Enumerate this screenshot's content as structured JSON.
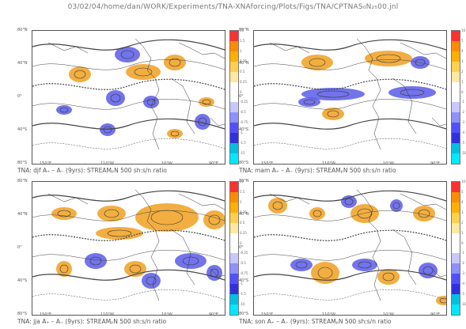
{
  "header": {
    "title": "03/02/04/home/dan/WORK/Experiments/TNA-XNAforcing/Plots/Figs/TNA/CPTNAS₀N₂₅00.jnl"
  },
  "lat_labels": [
    "80°N",
    "40°N",
    "0°",
    "40°S",
    "80°S"
  ],
  "lon_labels": [
    "150°E",
    "110°W",
    "10°W",
    "90°E"
  ],
  "panels": [
    {
      "id": "djf",
      "caption": "TNA: djf A₊ – A₋ (9yrs): STREAMₚN 500 sh:s/n ratio",
      "cbar_labels": [
        "15",
        "1.5",
        "1",
        "0.75",
        "0.5",
        "0.25",
        "0",
        "-0.25",
        "-0.5",
        "-0.75",
        "-1",
        "-1.5",
        "-15"
      ]
    },
    {
      "id": "mam",
      "caption": "TNA: mam A₊ – A₋ (9yrs): STREAMₚN 500 sh:s/n ratio",
      "cbar_labels": [
        "10",
        "5",
        "4",
        "3",
        "2",
        "1",
        "0",
        "-1",
        "-2",
        "-3",
        "-4",
        "-5",
        "-10"
      ]
    },
    {
      "id": "jja",
      "caption": "TNA: jja A₊ – A₋ (9yrs): STREAMₚN 500 sh:s/n ratio",
      "cbar_labels": [
        "10",
        "1.5",
        "1",
        "0.75",
        "0.5",
        "0.25",
        "0",
        "-0.25",
        "-0.5",
        "-0.75",
        "-1",
        "-1.5",
        "-10"
      ]
    },
    {
      "id": "son",
      "caption": "TNA: son A₊ – A₋ (9yrs): STREAMₚN 500 sh:s/n ratio",
      "cbar_labels": [
        "10",
        "5",
        "4",
        "3",
        "2",
        "1",
        "0",
        "-1",
        "-2",
        "-3",
        "-4",
        "-5",
        "-10"
      ]
    }
  ],
  "colors": {
    "scale": [
      "#ff3030",
      "#ff8c00",
      "#ffb000",
      "#ffd050",
      "#ffe8a0",
      "#ffffff",
      "#ffffff",
      "#c8c8ff",
      "#9090ff",
      "#5050ff",
      "#3030e0",
      "#00c0e0",
      "#00e8ff"
    ],
    "positive": "#f0a020",
    "negative": "#5a5ae8"
  }
}
